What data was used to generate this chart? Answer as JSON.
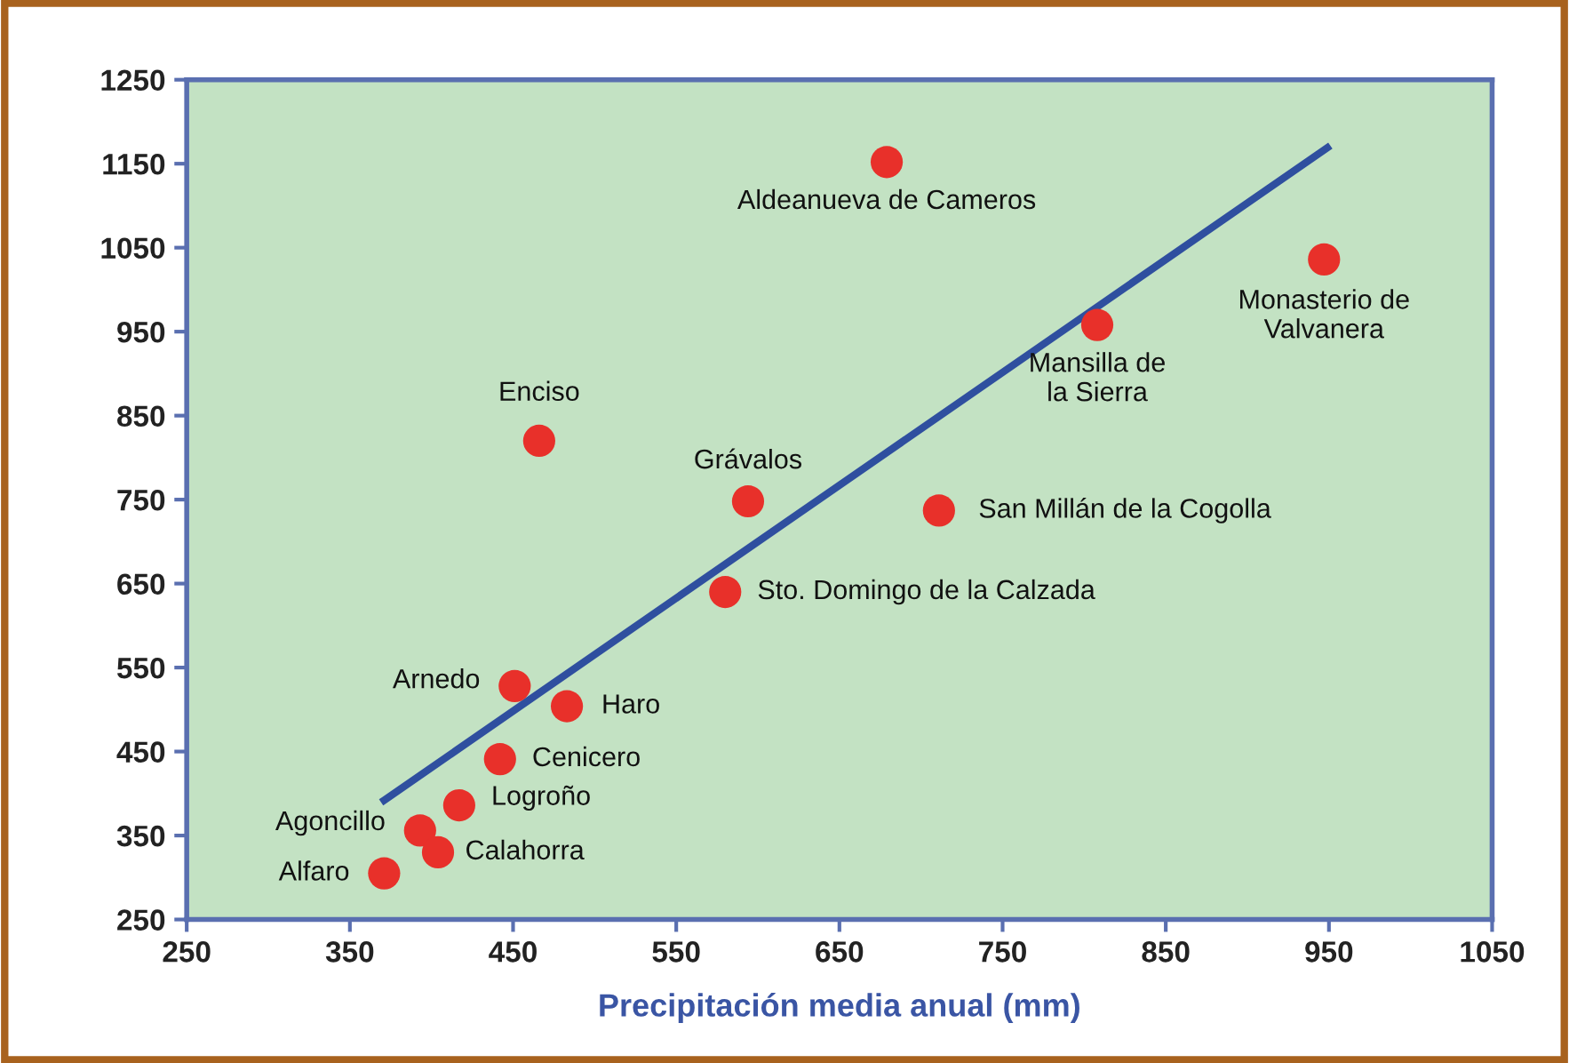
{
  "chart_data": {
    "type": "scatter",
    "xlabel": "Precipitación media anual (mm)",
    "xlim": [
      250,
      1050
    ],
    "xticks": [
      250,
      350,
      450,
      550,
      650,
      750,
      850,
      950,
      1050
    ],
    "ylim": [
      250,
      1250
    ],
    "yticks": [
      250,
      350,
      450,
      550,
      650,
      750,
      850,
      950,
      1050,
      1150,
      1250
    ],
    "grid": false,
    "series": [
      {
        "marker": "circle",
        "color": "#e8302a",
        "x": [
          371,
          393,
          404,
          417,
          442,
          451,
          483,
          580,
          594,
          466,
          679,
          808,
          947,
          711
        ],
        "values": [
          305,
          356,
          330,
          386,
          441,
          528,
          504,
          640,
          748,
          820,
          1152,
          958,
          1036,
          737
        ]
      },
      {
        "type": "line",
        "marker": "none",
        "color": "#2f4f9f",
        "line_style": "solid",
        "x": [
          371,
          949
        ],
        "values": [
          392,
          1169
        ]
      }
    ],
    "annotations": [
      {
        "text": "Alfaro",
        "x": 371,
        "y": 305
      },
      {
        "text": "Agoncillo",
        "x": 393,
        "y": 356
      },
      {
        "text": "Calahorra",
        "x": 404,
        "y": 330
      },
      {
        "text": "Logroño",
        "x": 417,
        "y": 386
      },
      {
        "text": "Cenicero",
        "x": 442,
        "y": 441
      },
      {
        "text": "Arnedo",
        "x": 451,
        "y": 528
      },
      {
        "text": "Haro",
        "x": 483,
        "y": 504
      },
      {
        "text": "Sto. Domingo de la Calzada",
        "x": 580,
        "y": 640
      },
      {
        "text": "Grávalos",
        "x": 594,
        "y": 748
      },
      {
        "text": "Enciso",
        "x": 466,
        "y": 820
      },
      {
        "text": "Aldeanueva de Cameros",
        "x": 679,
        "y": 1152
      },
      {
        "text": "Mansilla de\nla Sierra",
        "x": 808,
        "y": 958
      },
      {
        "text": "Monasterio de\nValvanera",
        "x": 947,
        "y": 1036
      },
      {
        "text": "San Millán de la Cogolla",
        "x": 711,
        "y": 737
      }
    ]
  }
}
